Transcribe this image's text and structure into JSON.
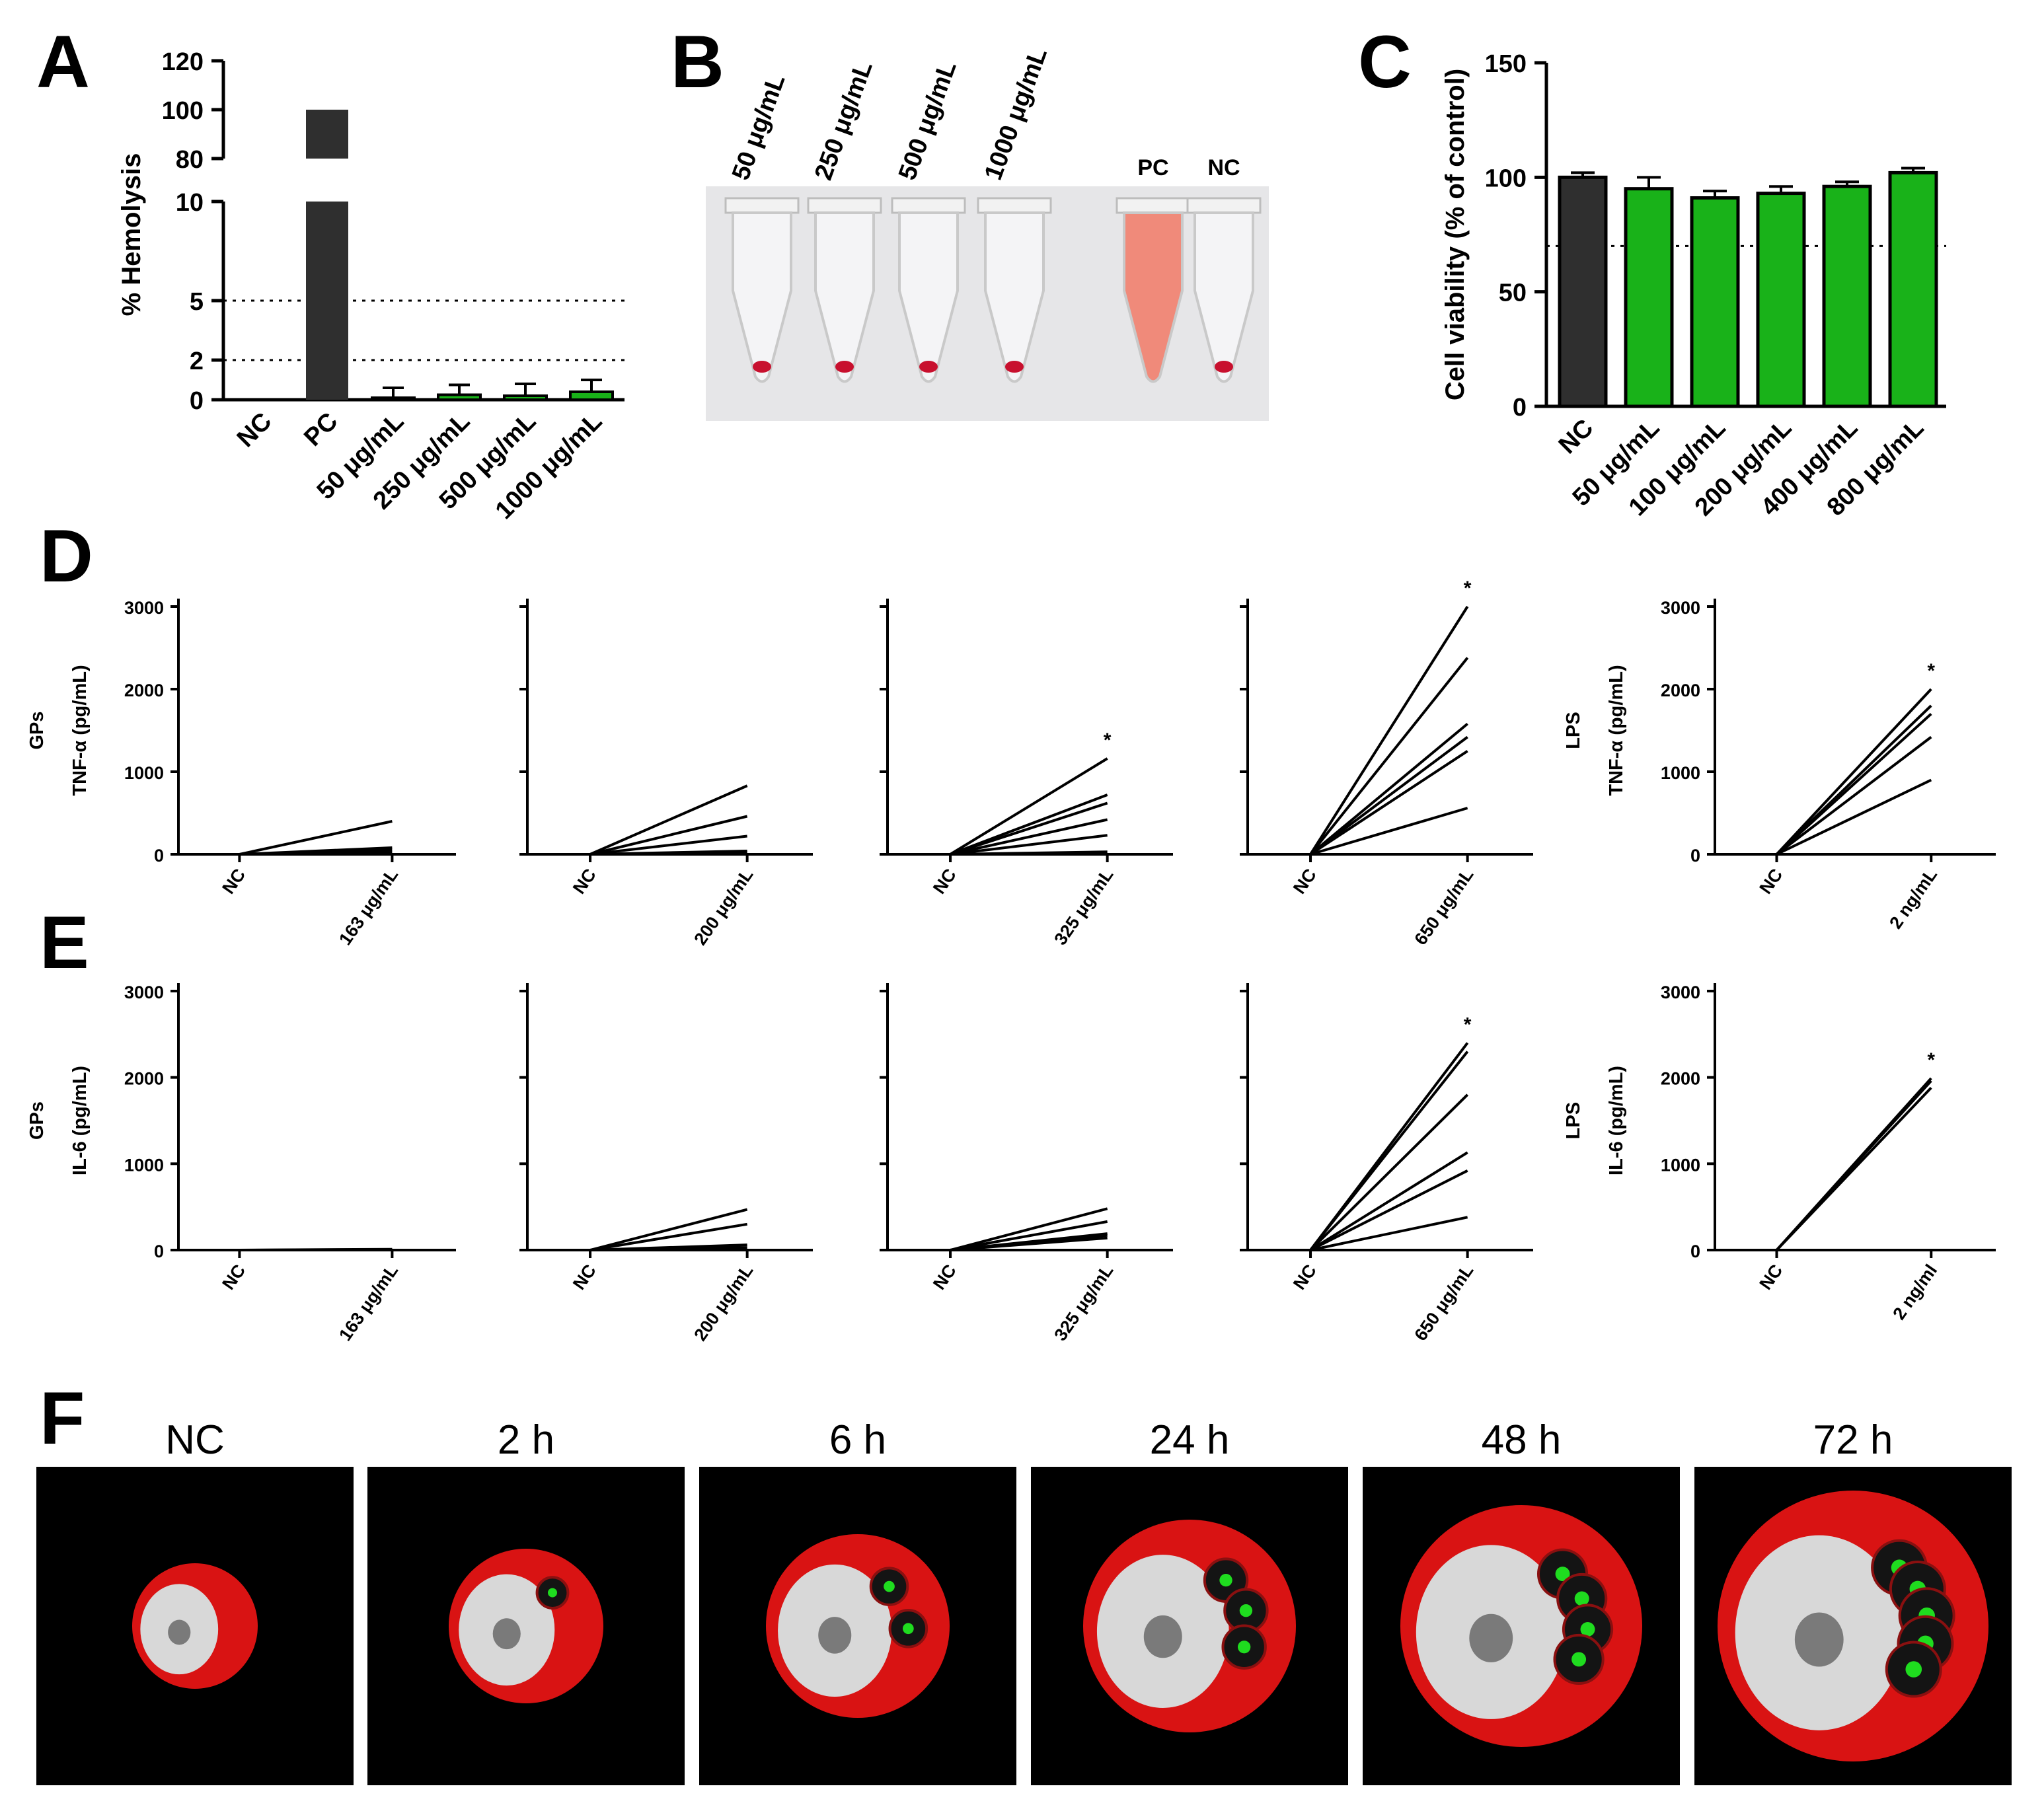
{
  "panel_letters": [
    "A",
    "B",
    "C",
    "D",
    "E",
    "F"
  ],
  "colors": {
    "black": "#000000",
    "dark_bar": "#2f2f2f",
    "green": "#19b219",
    "red": "#ff1a1a",
    "white": "#ffffff"
  },
  "chart_data": [
    {
      "id": "A",
      "type": "bar",
      "ylabel": "% Hemolysis",
      "y_ticks_lower": [
        "0",
        "2",
        "5",
        "10"
      ],
      "y_ticks_upper": [
        "80",
        "100",
        "120"
      ],
      "ylim_lower": [
        0,
        10
      ],
      "ylim_upper": [
        80,
        120
      ],
      "reference_lines": [
        2,
        5
      ],
      "categories": [
        "NC",
        "PC",
        "50 μg/mL",
        "250  μg/mL",
        "500 μg/mL",
        "1000 μg/mL"
      ],
      "values": [
        0,
        100,
        0.1,
        0.25,
        0.2,
        0.4
      ],
      "errors": [
        0,
        0,
        0.5,
        0.5,
        0.6,
        0.6
      ],
      "bar_colors": [
        "#2f2f2f",
        "#2f2f2f",
        "#19b219",
        "#19b219",
        "#19b219",
        "#19b219"
      ]
    },
    {
      "id": "C",
      "type": "bar",
      "ylabel": "Cell viability (% of control)",
      "y_ticks": [
        "0",
        "50",
        "100",
        "150"
      ],
      "ylim": [
        0,
        150
      ],
      "reference_lines": [
        70
      ],
      "categories": [
        "NC",
        "50 μg/mL",
        "100 μg/mL",
        "200 μg/mL",
        "400 μg/mL",
        "800 μg/mL"
      ],
      "values": [
        100,
        95,
        91,
        93,
        96,
        102
      ],
      "errors": [
        2,
        5,
        3,
        3,
        2,
        2
      ],
      "bar_colors": [
        "#2f2f2f",
        "#19b219",
        "#19b219",
        "#19b219",
        "#19b219",
        "#19b219"
      ]
    },
    {
      "id": "D",
      "type": "line",
      "row_label": "GPs",
      "ylabel": "TNF-α (pg/mL)",
      "y_ticks": [
        "0",
        "1000",
        "2000",
        "3000"
      ],
      "ylim": [
        0,
        3000
      ],
      "subplots": [
        {
          "title": "",
          "categories": [
            "NC",
            "163 μg/mL"
          ],
          "series": [
            [
              0,
              400
            ],
            [
              0,
              80
            ],
            [
              0,
              50
            ],
            [
              0,
              20
            ]
          ],
          "significance": ""
        },
        {
          "title": "",
          "categories": [
            "NC",
            "200 μg/mL"
          ],
          "series": [
            [
              0,
              830
            ],
            [
              0,
              460
            ],
            [
              0,
              220
            ],
            [
              0,
              40
            ],
            [
              0,
              20
            ]
          ],
          "significance": ""
        },
        {
          "title": "",
          "categories": [
            "NC",
            "325 μg/mL"
          ],
          "series": [
            [
              0,
              1160
            ],
            [
              0,
              720
            ],
            [
              0,
              620
            ],
            [
              0,
              420
            ],
            [
              0,
              230
            ],
            [
              0,
              30
            ]
          ],
          "significance": "*"
        },
        {
          "title": "",
          "categories": [
            "NC",
            "650 μg/mL"
          ],
          "series": [
            [
              0,
              3000
            ],
            [
              0,
              2380
            ],
            [
              0,
              1580
            ],
            [
              0,
              1420
            ],
            [
              0,
              1250
            ],
            [
              0,
              560
            ]
          ],
          "significance": "*"
        },
        {
          "title": "",
          "row_label": "LPS",
          "categories": [
            "NC",
            "2 ng/mL"
          ],
          "series": [
            [
              0,
              2000
            ],
            [
              0,
              1800
            ],
            [
              0,
              1700
            ],
            [
              0,
              1420
            ],
            [
              0,
              900
            ]
          ],
          "significance": "*",
          "show_y_ticks": true
        }
      ]
    },
    {
      "id": "E",
      "type": "line",
      "row_label": "GPs",
      "ylabel": "IL-6 (pg/mL)",
      "y_ticks": [
        "0",
        "1000",
        "2000",
        "3000"
      ],
      "ylim": [
        0,
        3000
      ],
      "subplots": [
        {
          "categories": [
            "NC",
            "163 μg/mL"
          ],
          "series": [
            [
              0,
              10
            ],
            [
              0,
              5
            ]
          ],
          "significance": ""
        },
        {
          "categories": [
            "NC",
            "200 μg/mL"
          ],
          "series": [
            [
              0,
              470
            ],
            [
              0,
              300
            ],
            [
              0,
              60
            ],
            [
              0,
              30
            ]
          ],
          "significance": ""
        },
        {
          "categories": [
            "NC",
            "325 μg/mL"
          ],
          "series": [
            [
              0,
              480
            ],
            [
              0,
              330
            ],
            [
              0,
              190
            ],
            [
              0,
              170
            ],
            [
              0,
              140
            ]
          ],
          "significance": ""
        },
        {
          "categories": [
            "NC",
            "650 μg/mL"
          ],
          "series": [
            [
              0,
              2400
            ],
            [
              0,
              2300
            ],
            [
              0,
              1800
            ],
            [
              0,
              1130
            ],
            [
              0,
              920
            ],
            [
              0,
              380
            ]
          ],
          "significance": "*"
        },
        {
          "row_label": "LPS",
          "categories": [
            "NC",
            "2 ng/ml"
          ],
          "series": [
            [
              0,
              1990
            ],
            [
              0,
              1960
            ],
            [
              0,
              1880
            ]
          ],
          "significance": "*",
          "show_y_ticks": true
        }
      ]
    }
  ],
  "panel_b": {
    "labels": [
      "50 μg/mL",
      "250 μg/mL",
      "500 μg/mL",
      "1000 μg/mL",
      "PC",
      "NC"
    ]
  },
  "panel_f": {
    "titles": [
      "NC",
      "2 h",
      "6 h",
      "24 h",
      "48 h",
      "72 h"
    ]
  }
}
